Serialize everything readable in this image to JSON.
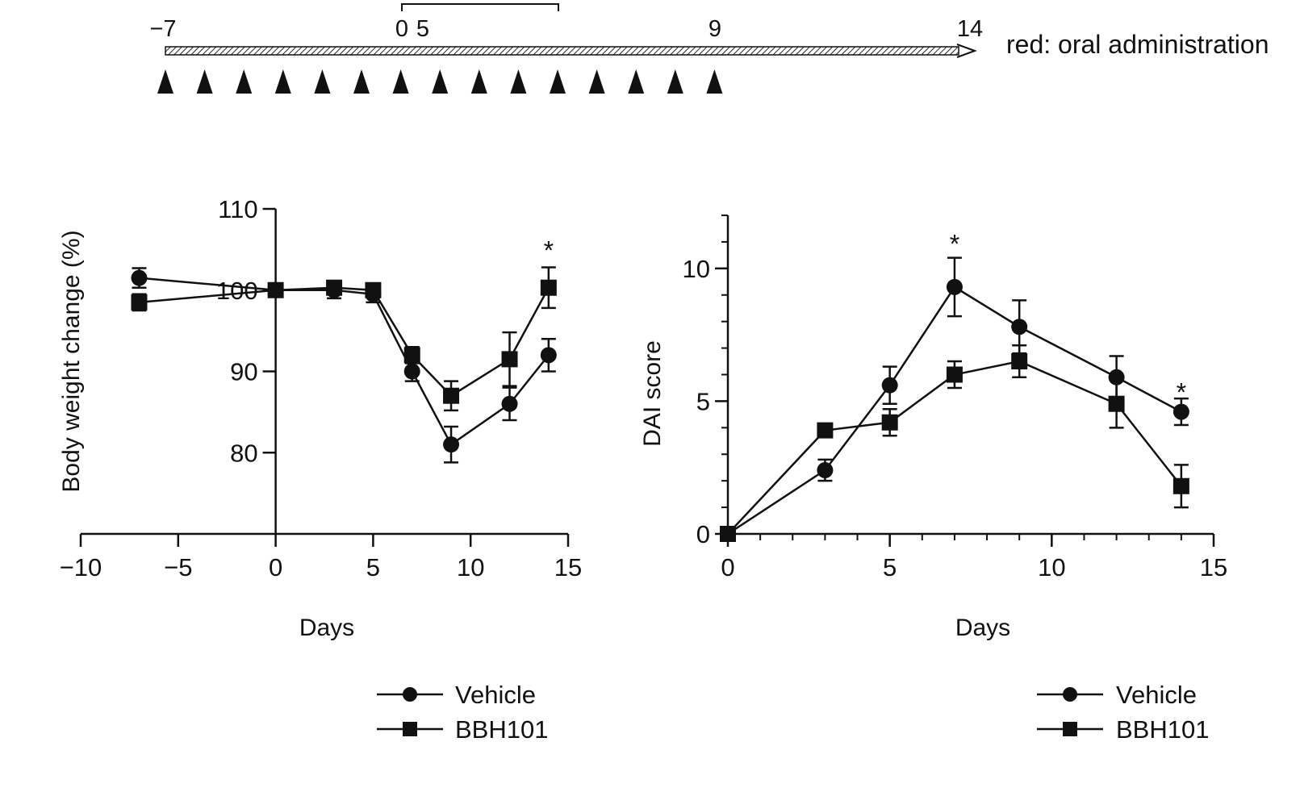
{
  "timeline": {
    "tick_labels": [
      {
        "day": -7,
        "text": "−7"
      },
      {
        "day": 0,
        "text": "0"
      },
      {
        "day": 1,
        "text": "5"
      },
      {
        "day": 9,
        "text": "9"
      },
      {
        "day": 14,
        "text": "14"
      }
    ],
    "axis_range": [
      -7,
      14
    ],
    "arrowheads": 15,
    "bracket_range": [
      0,
      4
    ],
    "note": "red: oral administration"
  },
  "legend": {
    "vehicle": "Vehicle",
    "bbh101": "BBH101"
  },
  "chart_data": [
    {
      "type": "line",
      "xlabel": "Days",
      "ylabel": "Body weight change (%)",
      "xlim": [
        -10,
        15
      ],
      "ylim": [
        70,
        110
      ],
      "xticks": [
        -10,
        -5,
        0,
        5,
        10,
        15
      ],
      "xtick_labels": [
        "−10",
        "−5",
        "0",
        "5",
        "10",
        "15"
      ],
      "yticks": [
        80,
        90,
        100,
        110
      ],
      "ytick_labels": [
        "80",
        "90",
        "100",
        "110"
      ],
      "yaxis_at_x": 0,
      "series": [
        {
          "name": "Vehicle",
          "marker": "circle",
          "x": [
            -7,
            0,
            3,
            5,
            7,
            9,
            12,
            14
          ],
          "y": [
            101.5,
            100,
            100,
            99.5,
            90,
            81,
            86,
            92
          ],
          "err": [
            1.2,
            0.5,
            1,
            1,
            1.2,
            2.2,
            2,
            2
          ]
        },
        {
          "name": "BBH101",
          "marker": "square",
          "x": [
            -7,
            0,
            3,
            5,
            7,
            9,
            12,
            14
          ],
          "y": [
            98.5,
            100,
            100.3,
            100,
            92,
            87,
            91.5,
            100.3
          ],
          "err": [
            1,
            0.5,
            0.8,
            0.8,
            1,
            1.8,
            3.3,
            2.5
          ]
        }
      ],
      "annotations": [
        {
          "x": 14,
          "y": 105.8,
          "text": "*"
        }
      ]
    },
    {
      "type": "line",
      "xlabel": "Days",
      "ylabel": "DAI score",
      "xlim": [
        0,
        15
      ],
      "ylim": [
        0,
        12
      ],
      "xticks": [
        0,
        5,
        10,
        15
      ],
      "xtick_labels": [
        "0",
        "5",
        "10",
        "15"
      ],
      "yticks": [
        0,
        5,
        10
      ],
      "ytick_labels": [
        "0",
        "5",
        "10"
      ],
      "series": [
        {
          "name": "Vehicle",
          "marker": "circle",
          "x": [
            0,
            3,
            5,
            7,
            9,
            12,
            14
          ],
          "y": [
            0,
            2.4,
            5.6,
            9.3,
            7.8,
            5.9,
            4.6
          ],
          "err": [
            0,
            0.4,
            0.7,
            1.1,
            1,
            0.8,
            0.5
          ]
        },
        {
          "name": "BBH101",
          "marker": "square",
          "x": [
            0,
            3,
            5,
            7,
            9,
            12,
            14
          ],
          "y": [
            0,
            3.9,
            4.2,
            6,
            6.5,
            4.9,
            1.8
          ],
          "err": [
            0,
            0.2,
            0.5,
            0.5,
            0.6,
            0.9,
            0.8
          ]
        }
      ],
      "annotations": [
        {
          "x": 7,
          "y": 11.2,
          "text": "*"
        },
        {
          "x": 14,
          "y": 5.6,
          "text": "*"
        }
      ]
    }
  ]
}
